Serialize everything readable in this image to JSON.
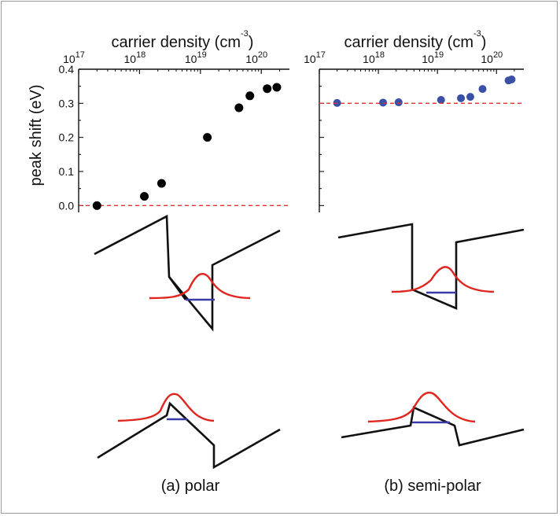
{
  "caption_left": "(a) polar",
  "caption_right": "(b) semi-polar",
  "colors": {
    "polar_points": "#000000",
    "semipolar_points": "#3a4fa6",
    "reference_line": "#e03030",
    "band_edge": "#111111",
    "wavefunction": "#e0251f",
    "energy_level": "#3a3aa8"
  },
  "chart_data": [
    {
      "type": "scatter",
      "panel": "(a) polar",
      "title": "",
      "xlabel": "carrier density (cm",
      "xlabel_exponent": "-3",
      "xlabel_close": ")",
      "ylabel": "peak shift (eV)",
      "x_scale": "log",
      "x_axis_position": "top",
      "xlim": [
        1e+17,
        2.9e+20
      ],
      "x_ticks": [
        {
          "value": 1e+17,
          "base": "10",
          "exp": "17"
        },
        {
          "value": 1e+18,
          "base": "10",
          "exp": "18"
        },
        {
          "value": 1e+19,
          "base": "10",
          "exp": "19"
        },
        {
          "value": 1e+20,
          "base": "10",
          "exp": "20"
        }
      ],
      "ylim": [
        -0.02,
        0.4
      ],
      "y_ticks": [
        "0.0",
        "0.1",
        "0.2",
        "0.3",
        "0.4"
      ],
      "grid": false,
      "reference_line": {
        "y": 0.0,
        "style": "dashed"
      },
      "points": [
        {
          "x": 2e+17,
          "y": 0.0
        },
        {
          "x": 1.2e+18,
          "y": 0.027
        },
        {
          "x": 2.3e+18,
          "y": 0.065
        },
        {
          "x": 1.3e+19,
          "y": 0.2
        },
        {
          "x": 4.3e+19,
          "y": 0.287
        },
        {
          "x": 6.5e+19,
          "y": 0.322
        },
        {
          "x": 1.25e+20,
          "y": 0.343
        },
        {
          "x": 1.8e+20,
          "y": 0.347
        }
      ]
    },
    {
      "type": "scatter",
      "panel": "(b) semi-polar",
      "title": "",
      "xlabel": "carrier density (cm",
      "xlabel_exponent": "-3",
      "xlabel_close": ")",
      "ylabel": "",
      "x_scale": "log",
      "x_axis_position": "top",
      "xlim": [
        1e+17,
        2.9e+20
      ],
      "x_ticks": [
        {
          "value": 1e+17,
          "base": "10",
          "exp": "17"
        },
        {
          "value": 1e+18,
          "base": "10",
          "exp": "18"
        },
        {
          "value": 1e+19,
          "base": "10",
          "exp": "19"
        },
        {
          "value": 1e+20,
          "base": "10",
          "exp": "20"
        }
      ],
      "ylim": [
        -0.02,
        0.4
      ],
      "y_ticks": [],
      "grid": false,
      "reference_line": {
        "y": 0.3,
        "style": "dashed"
      },
      "points": [
        {
          "x": 2e+17,
          "y": 0.301
        },
        {
          "x": 1.2e+18,
          "y": 0.302
        },
        {
          "x": 2.2e+18,
          "y": 0.303
        },
        {
          "x": 1.15e+19,
          "y": 0.31
        },
        {
          "x": 2.5e+19,
          "y": 0.315
        },
        {
          "x": 3.6e+19,
          "y": 0.319
        },
        {
          "x": 5.8e+19,
          "y": 0.342
        },
        {
          "x": 1.6e+20,
          "y": 0.367
        },
        {
          "x": 1.8e+20,
          "y": 0.37
        }
      ]
    }
  ]
}
